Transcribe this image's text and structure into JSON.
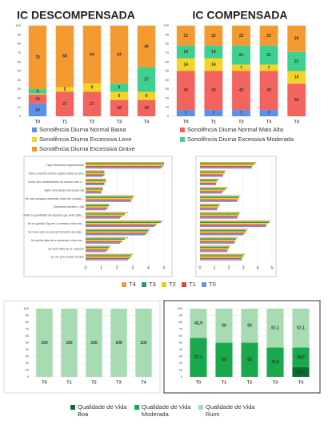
{
  "chart_data": [
    {
      "type": "stacked_bar",
      "title": "IC DESCOMPENSADA",
      "categories": [
        "T0",
        "T1",
        "T2",
        "T3",
        "T4"
      ],
      "ylim": [
        0,
        100
      ],
      "yticks": [
        0,
        10,
        20,
        30,
        40,
        50,
        60,
        70,
        80,
        90,
        100
      ],
      "grid": true,
      "series": [
        {
          "name": "Sonolência Diurna Normal Baixa",
          "color": "#5b8fe8",
          "values": [
            14,
            0,
            0,
            0,
            0
          ]
        },
        {
          "name": "Sonolência Diurna Normal Mais Alta",
          "color": "#f4645f",
          "values": [
            10,
            27,
            27,
            18,
            18
          ]
        },
        {
          "name": "Sonolência Diurna Excessiva Leve",
          "color": "#f5d327",
          "values": [
            1,
            5,
            9,
            9,
            9
          ]
        },
        {
          "name": "Sonolência Diurna Excessiva Moderada",
          "color": "#3fcf8e",
          "values": [
            5,
            0,
            0,
            9,
            27
          ]
        },
        {
          "name": "Sonolência Diurna Excessiva Grave",
          "color": "#f59a30",
          "values": [
            70,
            68,
            64,
            64,
            46
          ]
        }
      ]
    },
    {
      "type": "stacked_bar",
      "title": "IC COMPENSADA",
      "categories": [
        "T0",
        "T1",
        "T2",
        "T3",
        "T4"
      ],
      "ylim": [
        0,
        100
      ],
      "yticks": [
        0,
        10,
        20,
        30,
        40,
        50,
        60,
        70,
        80,
        90,
        100
      ],
      "grid": true,
      "series": [
        {
          "color": "#5b8fe8",
          "values": [
            7,
            7,
            7,
            7,
            0
          ]
        },
        {
          "color": "#f4645f",
          "values": [
            43,
            43,
            43,
            43,
            36
          ]
        },
        {
          "color": "#f5d327",
          "values": [
            14,
            14,
            7,
            7,
            14
          ]
        },
        {
          "color": "#3fcf8e",
          "values": [
            14,
            14,
            21,
            21,
            21
          ]
        },
        {
          "color": "#f59a30",
          "values": [
            22,
            22,
            22,
            22,
            29
          ]
        }
      ]
    },
    {
      "type": "hbar",
      "xlim": [
        0,
        5
      ],
      "xticks": [
        0,
        1,
        2,
        3,
        4,
        5
      ],
      "grid": true,
      "categories": [
        "Faço exercícios regularmente",
        "Tomo a vacina contra a gripe todos os anos",
        "Tomo meu medicamento de acordo com o...",
        "Ingiro uma dieta com pouco sal",
        "Se meu cansaço aumenta, entro em contato...",
        "Descanso durante o dia",
        "Limito a quantidade de líquidos que bebo (não...",
        "Se eu ganhar 2kg em 1 semana, entro em...",
        "Se meus pés ou pernas tornarem-se mais...",
        "Se minha falta de ar aumenta, entro em...",
        "Se sinto falta de ar, repouso",
        "Eu me peso todos os dias"
      ],
      "series": [
        {
          "name": "T4",
          "color": "#f59a30",
          "values": [
            5,
            1.2,
            1.3,
            1.1,
            3.1,
            1.5,
            2.7,
            4.9,
            4.1,
            2.7,
            1.6,
            3.0
          ]
        },
        {
          "name": "T3",
          "color": "#1aa55a",
          "values": [
            5,
            1.2,
            1.3,
            1.1,
            3.0,
            1.5,
            2.5,
            4.8,
            4.0,
            2.5,
            1.5,
            2.9
          ]
        },
        {
          "name": "T2",
          "color": "#f5c518",
          "values": [
            5,
            1.2,
            1.3,
            1.1,
            3.0,
            1.4,
            2.5,
            4.6,
            4.0,
            2.4,
            1.5,
            2.9
          ]
        },
        {
          "name": "T1",
          "color": "#e8403a",
          "values": [
            4.9,
            1.2,
            1.2,
            1.0,
            2.9,
            1.4,
            2.3,
            4.5,
            3.9,
            2.3,
            1.4,
            2.8
          ]
        },
        {
          "name": "T0",
          "color": "#6b8ff0",
          "values": [
            4.8,
            1.1,
            1.2,
            1.0,
            2.9,
            1.3,
            2.2,
            4.4,
            3.8,
            2.2,
            1.3,
            2.7
          ]
        }
      ]
    },
    {
      "type": "hbar",
      "xlim": [
        0,
        5
      ],
      "xticks": [
        0,
        1,
        2,
        3,
        4,
        5
      ],
      "grid": true,
      "series": [
        {
          "color": "#f59a30",
          "values": [
            3.9,
            1.8,
            1.3,
            1.9,
            2.8,
            1.4,
            2.8,
            4.9,
            3.3,
            2.6,
            2.1,
            3.1
          ]
        },
        {
          "color": "#1aa55a",
          "values": [
            3.8,
            1.7,
            1.2,
            1.8,
            2.7,
            1.3,
            2.7,
            4.8,
            3.2,
            2.5,
            2.0,
            3.0
          ]
        },
        {
          "color": "#f5c518",
          "values": [
            3.7,
            1.7,
            1.2,
            1.7,
            2.7,
            1.3,
            2.7,
            4.7,
            3.2,
            2.5,
            2.0,
            3.0
          ]
        },
        {
          "color": "#e8403a",
          "values": [
            3.6,
            1.6,
            1.1,
            1.6,
            2.6,
            1.2,
            2.6,
            4.6,
            3.1,
            2.4,
            1.9,
            2.9
          ]
        },
        {
          "color": "#6b8ff0",
          "values": [
            3.6,
            1.6,
            1.1,
            1.5,
            2.6,
            1.2,
            2.6,
            4.6,
            3.0,
            2.4,
            1.9,
            2.9
          ]
        }
      ]
    },
    {
      "type": "stacked_bar",
      "categories": [
        "T0",
        "T1",
        "T2",
        "T3",
        "T4"
      ],
      "ylim": [
        0,
        100
      ],
      "yticks": [
        0,
        10,
        20,
        30,
        40,
        50,
        60,
        70,
        80,
        90,
        100
      ],
      "grid": true,
      "series": [
        {
          "name": "Qualidade de Vida Boa",
          "color": "#0a6e2e",
          "values": [
            0,
            0,
            0,
            0,
            0
          ]
        },
        {
          "name": "Qualidade de Vida Moderada",
          "color": "#1aa84c",
          "values": [
            0,
            0,
            0,
            0,
            0
          ]
        },
        {
          "name": "Qualidade de Vida Ruim",
          "color": "#a7dcb2",
          "values": [
            100,
            100,
            100,
            100,
            100
          ]
        }
      ]
    },
    {
      "type": "stacked_bar",
      "categories": [
        "T0",
        "T1",
        "T2",
        "T3",
        "T4"
      ],
      "ylim": [
        0,
        100
      ],
      "yticks": [
        0,
        10,
        20,
        30,
        40,
        50,
        60,
        70,
        80,
        90,
        100
      ],
      "grid": true,
      "series": [
        {
          "color": "#0a6e2e",
          "values": [
            0,
            0,
            0,
            0,
            14.3
          ],
          "value_labels": [
            null,
            null,
            null,
            null,
            "14,3"
          ]
        },
        {
          "color": "#1aa84c",
          "values": [
            57.1,
            50,
            50,
            42.9,
            28.6
          ],
          "value_labels": [
            "57,1",
            "50",
            "50",
            "42,9",
            "28,6"
          ]
        },
        {
          "color": "#a7dcb2",
          "values": [
            42.9,
            50,
            50,
            57.1,
            57.1
          ],
          "value_labels": [
            "42,9",
            "50",
            "50",
            "57,1",
            "57,1"
          ]
        }
      ]
    }
  ]
}
